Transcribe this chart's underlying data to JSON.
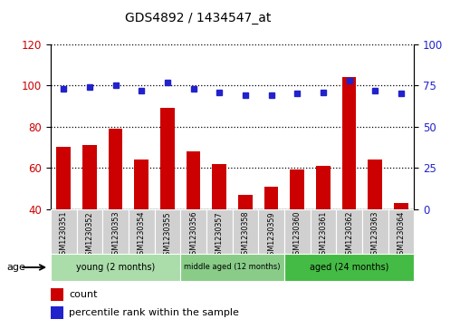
{
  "title": "GDS4892 / 1434547_at",
  "samples": [
    "GSM1230351",
    "GSM1230352",
    "GSM1230353",
    "GSM1230354",
    "GSM1230355",
    "GSM1230356",
    "GSM1230357",
    "GSM1230358",
    "GSM1230359",
    "GSM1230360",
    "GSM1230361",
    "GSM1230362",
    "GSM1230363",
    "GSM1230364"
  ],
  "counts": [
    70,
    71,
    79,
    64,
    89,
    68,
    62,
    47,
    51,
    59,
    61,
    104,
    64,
    43
  ],
  "percentiles": [
    73,
    74,
    75,
    72,
    77,
    73,
    71,
    69,
    69,
    70,
    71,
    78,
    72,
    70
  ],
  "ylim_left": [
    40,
    120
  ],
  "ylim_right": [
    0,
    100
  ],
  "yticks_left": [
    40,
    60,
    80,
    100,
    120
  ],
  "yticks_right": [
    0,
    25,
    50,
    75,
    100
  ],
  "bar_color": "#cc0000",
  "dot_color": "#2222cc",
  "groups": [
    {
      "label": "young (2 months)",
      "start": 0,
      "end": 5
    },
    {
      "label": "middle aged (12 months)",
      "start": 5,
      "end": 9
    },
    {
      "label": "aged (24 months)",
      "start": 9,
      "end": 14
    }
  ],
  "group_colors": [
    "#aaddaa",
    "#88cc88",
    "#44bb44"
  ],
  "age_label": "age",
  "legend_count": "count",
  "legend_percentile": "percentile rank within the sample",
  "grid_color": "black",
  "tick_label_bg": "#d0d0d0"
}
